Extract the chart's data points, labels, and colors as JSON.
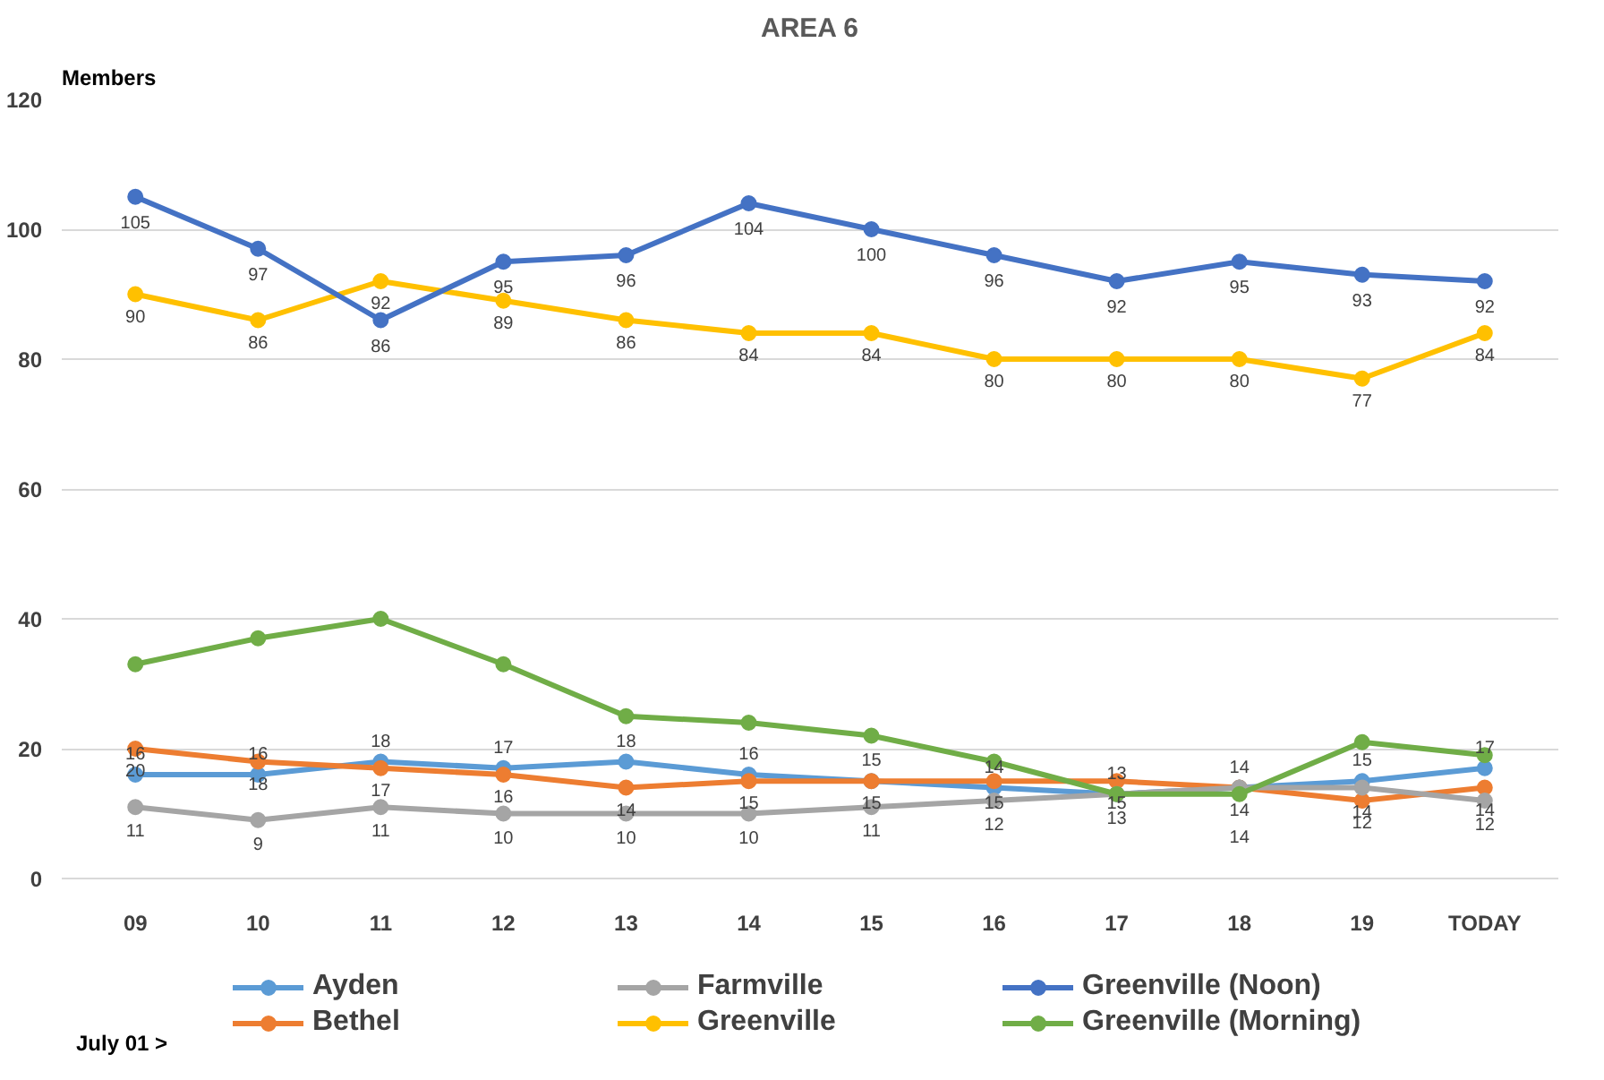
{
  "chart_data": {
    "type": "line",
    "title": "AREA 6",
    "ylabel": "Members",
    "categories": [
      "09",
      "10",
      "11",
      "12",
      "13",
      "14",
      "15",
      "16",
      "17",
      "18",
      "19",
      "TODAY"
    ],
    "ylim": [
      0,
      120
    ],
    "yticks": [
      0,
      20,
      40,
      60,
      80,
      100,
      120
    ],
    "grid": "y",
    "legend": "bottom",
    "marker": "circle",
    "line_style": "solid",
    "annotations": [
      "July 01 >"
    ],
    "series": [
      {
        "name": "Ayden",
        "color": "#5b9bd5",
        "values": [
          16,
          16,
          18,
          17,
          18,
          16,
          15,
          14,
          13,
          14,
          15,
          17
        ],
        "value_labels": [
          "16",
          "16",
          "18",
          "17",
          "18",
          "16",
          "15",
          "14",
          "13",
          "14",
          "15",
          "17"
        ]
      },
      {
        "name": "Bethel",
        "color": "#ed7d31",
        "values": [
          20,
          18,
          17,
          16,
          14,
          15,
          15,
          15,
          15,
          14,
          12,
          14
        ],
        "value_labels": [
          "20",
          "18",
          "17",
          "16",
          "14",
          "15",
          "15",
          "15",
          "15",
          "14",
          "12",
          "14"
        ]
      },
      {
        "name": "Farmville",
        "color": "#a5a5a5",
        "values": [
          11,
          9,
          11,
          10,
          10,
          10,
          11,
          12,
          13,
          14,
          14,
          12
        ],
        "value_labels": [
          "11",
          "9",
          "11",
          "10",
          "10",
          "10",
          "11",
          "12",
          "13",
          "14",
          "14",
          "12"
        ]
      },
      {
        "name": "Greenville",
        "color": "#ffc000",
        "values": [
          90,
          86,
          92,
          89,
          86,
          84,
          84,
          80,
          80,
          80,
          77,
          84
        ],
        "value_labels": [
          "90",
          "86",
          "92",
          "89",
          "86",
          "84",
          "84",
          "80",
          "80",
          "80",
          "77",
          "84"
        ]
      },
      {
        "name": "Greenville (Noon)",
        "color": "#4472c4",
        "values": [
          105,
          97,
          86,
          95,
          96,
          104,
          100,
          96,
          92,
          95,
          93,
          92
        ],
        "value_labels": [
          "105",
          "97",
          "86",
          "95",
          "96",
          "104",
          "100",
          "96",
          "92",
          "95",
          "93",
          "92"
        ]
      },
      {
        "name": "Greenville (Morning)",
        "color": "#70ad47",
        "values": [
          33,
          37,
          40,
          33,
          25,
          24,
          22,
          18,
          13,
          13,
          21,
          19
        ]
      }
    ]
  }
}
